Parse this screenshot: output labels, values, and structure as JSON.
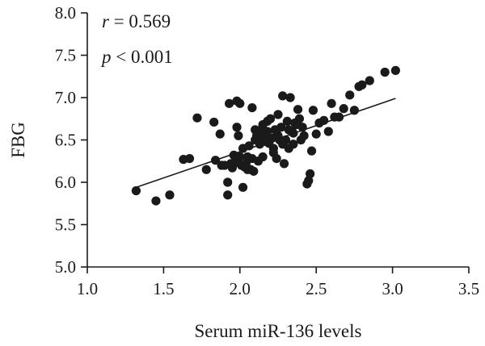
{
  "chart_data": {
    "type": "scatter",
    "xlabel": "Serum miR-136 levels",
    "ylabel": "FBG",
    "xlim": [
      1.0,
      3.5
    ],
    "ylim": [
      5.0,
      8.0
    ],
    "xticks": [
      "1.0",
      "1.5",
      "2.0",
      "2.5",
      "3.0",
      "3.5"
    ],
    "yticks": [
      "5.0",
      "5.5",
      "6.0",
      "6.5",
      "7.0",
      "7.5",
      "8.0"
    ],
    "grid": false,
    "annotations": {
      "r_symbol": "r",
      "r_text": " = 0.569",
      "p_symbol": "p",
      "p_text": " < 0.001"
    },
    "fit_line": {
      "x": [
        1.32,
        3.02
      ],
      "y": [
        5.94,
        6.99
      ]
    },
    "points": {
      "x": [
        1.32,
        1.45,
        1.54,
        1.63,
        1.67,
        1.72,
        1.78,
        1.83,
        1.84,
        1.87,
        1.88,
        1.9,
        1.92,
        1.93,
        1.94,
        1.95,
        1.96,
        1.97,
        1.98,
        1.99,
        2.0,
        2.0,
        2.01,
        2.02,
        2.03,
        2.04,
        2.05,
        2.06,
        2.07,
        2.08,
        2.09,
        2.1,
        2.1,
        2.11,
        2.12,
        2.13,
        2.14,
        2.15,
        2.16,
        2.17,
        2.18,
        2.19,
        2.2,
        2.21,
        2.22,
        2.23,
        2.24,
        2.25,
        2.26,
        2.27,
        2.28,
        2.29,
        2.3,
        2.31,
        2.32,
        2.33,
        2.34,
        2.35,
        2.36,
        2.37,
        2.38,
        2.39,
        2.4,
        2.41,
        2.42,
        2.44,
        2.45,
        2.46,
        2.47,
        2.48,
        2.5,
        2.52,
        2.55,
        2.58,
        2.6,
        2.62,
        2.65,
        2.68,
        2.72,
        2.75,
        2.78,
        2.8,
        2.85,
        2.95,
        3.02,
        1.92,
        1.98,
        2.02,
        2.15,
        2.05,
        2.22,
        2.18,
        2.35,
        2.13,
        2.25,
        2.08,
        2.28,
        2.32,
        2.12,
        2.17
      ],
      "y": [
        5.9,
        5.78,
        5.85,
        6.27,
        6.28,
        6.76,
        6.15,
        6.71,
        6.26,
        6.57,
        6.2,
        6.2,
        5.85,
        6.93,
        6.22,
        6.17,
        6.32,
        6.23,
        6.96,
        6.55,
        6.93,
        6.3,
        6.2,
        5.94,
        6.18,
        6.22,
        6.3,
        6.43,
        6.15,
        6.88,
        6.13,
        6.62,
        6.5,
        6.55,
        6.6,
        6.5,
        6.62,
        6.68,
        6.58,
        6.48,
        6.72,
        6.46,
        6.75,
        6.52,
        6.4,
        6.62,
        6.28,
        6.55,
        6.5,
        6.65,
        7.02,
        6.22,
        6.5,
        6.72,
        6.4,
        7.0,
        6.6,
        6.45,
        6.7,
        6.68,
        6.86,
        6.75,
        6.5,
        6.65,
        6.55,
        5.98,
        6.02,
        6.1,
        6.37,
        6.85,
        6.57,
        6.7,
        6.73,
        6.6,
        6.93,
        6.77,
        6.77,
        6.87,
        7.03,
        6.85,
        7.13,
        7.15,
        7.2,
        7.3,
        7.32,
        6.0,
        6.65,
        6.4,
        6.3,
        6.15,
        6.35,
        6.6,
        6.58,
        6.45,
        6.8,
        6.28,
        6.45,
        6.62,
        6.25,
        6.55
      ]
    }
  }
}
